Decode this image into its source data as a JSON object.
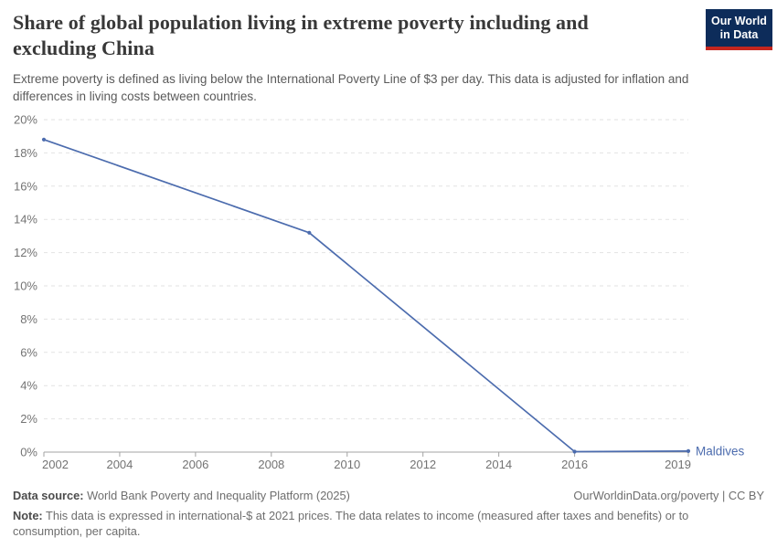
{
  "header": {
    "title": "Share of global population living in extreme poverty including and excluding China",
    "subtitle": "Extreme poverty is defined as living below the International Poverty Line of $3 per day. This data is adjusted for inflation and differences in living costs between countries."
  },
  "logo": {
    "line1": "Our World",
    "line2": "in Data",
    "bg_color": "#0d2c5a",
    "bar_color": "#c5261f"
  },
  "chart_data": {
    "type": "line",
    "title": "Share of global population living in extreme poverty including and excluding China",
    "xlabel": "",
    "ylabel": "",
    "xlim": [
      2002,
      2019
    ],
    "ylim": [
      0,
      20
    ],
    "x_ticks": [
      2002,
      2004,
      2006,
      2008,
      2010,
      2012,
      2014,
      2016,
      2019
    ],
    "y_ticks": [
      0,
      2,
      4,
      6,
      8,
      10,
      12,
      14,
      16,
      18,
      20
    ],
    "y_tick_suffix": "%",
    "grid": "horizontal-dashed",
    "legend_position": "end-of-line-label",
    "series": [
      {
        "name": "Maldives",
        "color": "#4c6cae",
        "points": [
          [
            2002,
            18.8
          ],
          [
            2009,
            13.2
          ],
          [
            2016,
            0.03
          ],
          [
            2019,
            0.06
          ]
        ]
      }
    ]
  },
  "footer": {
    "source_label": "Data source:",
    "source_value": " World Bank Poverty and Inequality Platform (2025)",
    "attribution": "OurWorldinData.org/poverty | CC BY",
    "note_label": "Note:",
    "note_value": " This data is expressed in international-$ at 2021 prices. The data relates to income (measured after taxes and benefits) or to consumption, per capita."
  },
  "colors": {
    "axis": "#a3a3a3",
    "grid": "#e2e2e2",
    "tick_text": "#737373",
    "line": "#4c6cae"
  }
}
